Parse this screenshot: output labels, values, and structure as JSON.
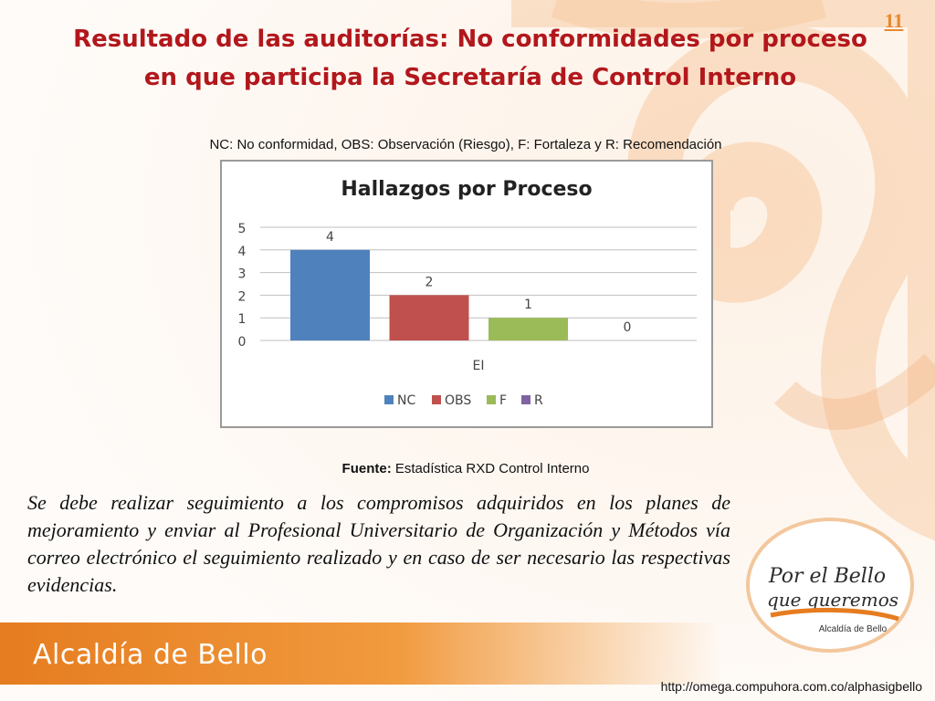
{
  "slide": {
    "number": "11",
    "title": "Resultado de las auditorías: No conformidades por proceso en que participa la Secretaría de Control Interno",
    "legend_note": "NC: No conformidad, OBS: Observación (Riesgo), F: Fortaleza y R: Recomendación",
    "source_label": "Fuente:",
    "source_value": "Estadística RXD Control Interno",
    "body": "Se debe realizar seguimiento a los compromisos adquiridos en los planes de mejoramiento y enviar al Profesional Universitario de Organización y Métodos vía correo electrónico el seguimiento realizado y en caso de ser necesario las respectivas evidencias.",
    "footer_brand": "Alcaldía de Bello",
    "footer_url": "http://omega.compuhora.com.co/alphasigbello",
    "logo_line1": "Por el Bello",
    "logo_line2": "que queremos",
    "logo_line3": "Alcaldía de Bello"
  },
  "colors": {
    "title": "#b2171c",
    "accent_orange": "#e8882f",
    "nc": "#4f81bd",
    "obs": "#c0504d",
    "f": "#9bbb59",
    "r": "#8064a2"
  },
  "chart_data": {
    "type": "bar",
    "title": "Hallazgos por Proceso",
    "categories": [
      "EI"
    ],
    "series": [
      {
        "name": "NC",
        "values": [
          4
        ]
      },
      {
        "name": "OBS",
        "values": [
          2
        ]
      },
      {
        "name": "F",
        "values": [
          1
        ]
      },
      {
        "name": "R",
        "values": [
          0
        ]
      }
    ],
    "ylim": [
      0,
      5
    ],
    "yticks": [
      "0",
      "1",
      "2",
      "3",
      "4",
      "5"
    ],
    "grid": true,
    "legend": "bottom",
    "data_labels": true
  }
}
